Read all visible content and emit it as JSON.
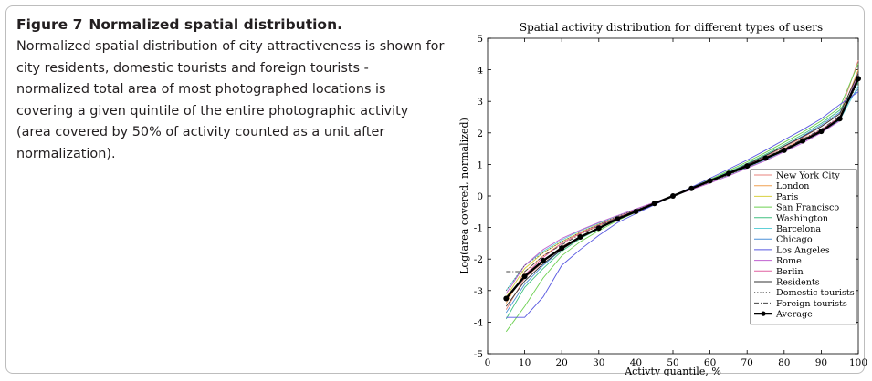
{
  "caption": {
    "figure_label": "Figure 7",
    "title": "Normalized spatial distribution.",
    "body": "Normalized spatial distribution of city attractiveness is shown for city residents, domestic tourists and foreign tourists - normalized total area of most photographed locations is covering a given quintile of the entire photographic activity (area covered by 50% of activity counted as a unit after normalization)."
  },
  "chart_data": {
    "type": "line",
    "title": "Spatial activity distribution for different types of users",
    "xlabel": "Activty quantile, %",
    "ylabel": "Log(area covered, normalized)",
    "xlim": [
      0,
      100
    ],
    "ylim": [
      -5,
      5
    ],
    "xticks": [
      0,
      10,
      20,
      30,
      40,
      50,
      60,
      70,
      80,
      90,
      100
    ],
    "yticks": [
      -5,
      -4,
      -3,
      -2,
      -1,
      0,
      1,
      2,
      3,
      4,
      5
    ],
    "grid": false,
    "legend_position": "bottom-right",
    "x": [
      5,
      10,
      15,
      20,
      25,
      30,
      35,
      40,
      45,
      50,
      55,
      60,
      65,
      70,
      75,
      80,
      85,
      90,
      95,
      100
    ],
    "series": [
      {
        "name": "New York City",
        "color": "#e8837c",
        "style": "solid",
        "values": [
          -3.6,
          -2.6,
          -2.1,
          -1.6,
          -1.3,
          -1.0,
          -0.7,
          -0.48,
          -0.24,
          0,
          0.24,
          0.48,
          0.72,
          0.98,
          1.25,
          1.55,
          1.85,
          2.2,
          2.6,
          4.3
        ]
      },
      {
        "name": "London",
        "color": "#f0a050",
        "style": "solid",
        "values": [
          -3.4,
          -2.4,
          -1.9,
          -1.5,
          -1.2,
          -0.95,
          -0.68,
          -0.46,
          -0.23,
          0,
          0.23,
          0.46,
          0.7,
          0.95,
          1.2,
          1.5,
          1.8,
          2.1,
          2.5,
          4.0
        ]
      },
      {
        "name": "Paris",
        "color": "#d8d040",
        "style": "solid",
        "values": [
          -3.2,
          -2.3,
          -1.8,
          -1.45,
          -1.15,
          -0.9,
          -0.66,
          -0.44,
          -0.22,
          0,
          0.22,
          0.44,
          0.68,
          0.92,
          1.18,
          1.45,
          1.75,
          2.05,
          2.45,
          3.8
        ]
      },
      {
        "name": "San Francisco",
        "color": "#6cd050",
        "style": "solid",
        "values": [
          -4.3,
          -3.5,
          -2.6,
          -1.9,
          -1.45,
          -1.1,
          -0.78,
          -0.52,
          -0.26,
          0,
          0.26,
          0.52,
          0.8,
          1.08,
          1.38,
          1.7,
          2.02,
          2.38,
          2.8,
          4.2
        ]
      },
      {
        "name": "Washington",
        "color": "#40c080",
        "style": "solid",
        "values": [
          -3.9,
          -2.9,
          -2.3,
          -1.75,
          -1.35,
          -1.05,
          -0.74,
          -0.5,
          -0.25,
          0,
          0.25,
          0.5,
          0.76,
          1.03,
          1.32,
          1.63,
          1.95,
          2.3,
          2.72,
          3.6
        ]
      },
      {
        "name": "Barcelona",
        "color": "#60d0d8",
        "style": "solid",
        "values": [
          -3.0,
          -2.2,
          -1.75,
          -1.4,
          -1.1,
          -0.86,
          -0.63,
          -0.42,
          -0.21,
          0,
          0.21,
          0.42,
          0.65,
          0.9,
          1.15,
          1.42,
          1.72,
          2.02,
          2.4,
          3.5
        ]
      },
      {
        "name": "Chicago",
        "color": "#4a90d8",
        "style": "solid",
        "values": [
          -3.7,
          -2.8,
          -2.2,
          -1.7,
          -1.3,
          -1.02,
          -0.72,
          -0.49,
          -0.24,
          0,
          0.24,
          0.49,
          0.74,
          1.0,
          1.28,
          1.58,
          1.9,
          2.25,
          2.65,
          3.4
        ]
      },
      {
        "name": "Los Angeles",
        "color": "#5858e0",
        "style": "solid",
        "values": [
          -3.85,
          -3.85,
          -3.2,
          -2.2,
          -1.7,
          -1.25,
          -0.85,
          -0.56,
          -0.28,
          0,
          0.28,
          0.56,
          0.85,
          1.14,
          1.45,
          1.78,
          2.1,
          2.45,
          2.9,
          3.3
        ]
      },
      {
        "name": "Rome",
        "color": "#c060d0",
        "style": "solid",
        "values": [
          -3.1,
          -2.2,
          -1.7,
          -1.35,
          -1.08,
          -0.84,
          -0.62,
          -0.41,
          -0.2,
          0,
          0.2,
          0.41,
          0.64,
          0.88,
          1.12,
          1.4,
          1.68,
          2.0,
          2.38,
          3.9
        ]
      },
      {
        "name": "Berlin",
        "color": "#e060a0",
        "style": "solid",
        "values": [
          -3.3,
          -2.5,
          -1.95,
          -1.5,
          -1.18,
          -0.92,
          -0.67,
          -0.45,
          -0.22,
          0,
          0.22,
          0.45,
          0.69,
          0.94,
          1.2,
          1.48,
          1.78,
          2.1,
          2.5,
          3.7
        ]
      },
      {
        "name": "Residents",
        "color": "#333333",
        "style": "solid",
        "values": [
          -3.5,
          -2.7,
          -2.15,
          -1.7,
          -1.32,
          -1.03,
          -0.73,
          -0.49,
          -0.24,
          0,
          0.24,
          0.49,
          0.74,
          1.0,
          1.28,
          1.58,
          1.88,
          2.2,
          2.6,
          3.9
        ]
      },
      {
        "name": "Domestic tourists",
        "color": "#555555",
        "style": "dotted",
        "values": [
          -3.0,
          -2.2,
          -1.8,
          -1.45,
          -1.15,
          -0.9,
          -0.65,
          -0.44,
          -0.22,
          0,
          0.22,
          0.44,
          0.67,
          0.91,
          1.17,
          1.45,
          1.75,
          2.05,
          2.45,
          3.6
        ]
      },
      {
        "name": "Foreign tourists",
        "color": "#444444",
        "style": "dashdot",
        "values": [
          -2.4,
          -2.4,
          -1.9,
          -1.55,
          -1.22,
          -0.95,
          -0.69,
          -0.46,
          -0.23,
          0,
          0.23,
          0.46,
          0.7,
          0.95,
          1.22,
          1.5,
          1.8,
          2.12,
          2.52,
          3.7
        ]
      },
      {
        "name": "Average",
        "color": "#000000",
        "style": "bold-marker",
        "values": [
          -3.25,
          -2.55,
          -2.05,
          -1.65,
          -1.3,
          -1.02,
          -0.73,
          -0.49,
          -0.24,
          0,
          0.24,
          0.48,
          0.71,
          0.95,
          1.2,
          1.45,
          1.75,
          2.05,
          2.45,
          3.72
        ]
      }
    ]
  }
}
